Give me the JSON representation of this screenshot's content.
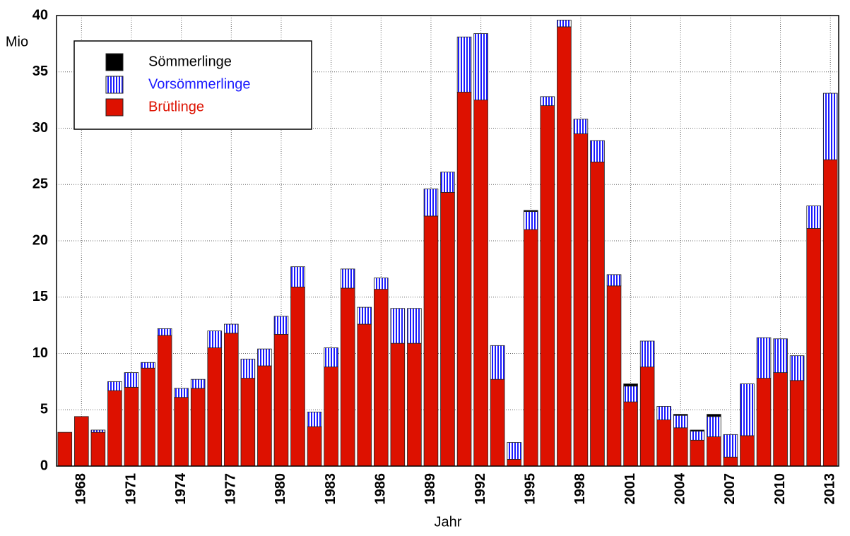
{
  "chart_data": {
    "type": "stacked-bar",
    "y_label": "Mio",
    "x_label": "Jahr",
    "categories": [
      null,
      "1968",
      null,
      null,
      "1971",
      null,
      null,
      "1974",
      null,
      null,
      "1977",
      null,
      null,
      "1980",
      null,
      null,
      "1983",
      null,
      null,
      "1986",
      null,
      null,
      "1989",
      null,
      null,
      "1992",
      null,
      null,
      "1995",
      null,
      null,
      "1998",
      null,
      null,
      "2001",
      null,
      null,
      "2004",
      null,
      null,
      "2007",
      null,
      null,
      "2010",
      null,
      null,
      "2013"
    ],
    "series": [
      {
        "name": "Sömmerlinge",
        "color": "#000000",
        "values": [
          0,
          0,
          0,
          0,
          0,
          0,
          0,
          0,
          0,
          0,
          0,
          0,
          0,
          0,
          0,
          0,
          0,
          0,
          0,
          0,
          0,
          0,
          0,
          0,
          0,
          0,
          0,
          0,
          0.1,
          0,
          0,
          0,
          0,
          0,
          0.2,
          0,
          0,
          0.1,
          0.1,
          0.2,
          0,
          0,
          0,
          0,
          0,
          0,
          0
        ]
      },
      {
        "name": "Vorsömmerlinge",
        "color": "#1a1aff",
        "values": [
          0,
          0,
          0.2,
          0.8,
          1.3,
          0.5,
          0.6,
          0.8,
          0.8,
          1.5,
          0.8,
          1.7,
          1.5,
          1.6,
          1.8,
          1.3,
          1.7,
          1.7,
          1.5,
          1.0,
          3.1,
          3.1,
          2.4,
          1.8,
          4.9,
          5.9,
          3.0,
          1.5,
          1.6,
          0.8,
          0.6,
          1.3,
          1.9,
          1.0,
          1.4,
          2.3,
          1.2,
          1.1,
          0.8,
          1.8,
          2.0,
          4.6,
          3.6,
          3.0,
          2.2,
          2.0,
          5.9
        ]
      },
      {
        "name": "Brütlinge",
        "color": "#dd1100",
        "values": [
          3.0,
          4.4,
          3.0,
          6.7,
          7.0,
          8.7,
          11.6,
          6.1,
          6.9,
          10.5,
          11.8,
          7.8,
          8.9,
          11.7,
          15.9,
          3.5,
          8.8,
          15.8,
          12.6,
          15.7,
          10.9,
          10.9,
          22.2,
          24.3,
          33.2,
          32.5,
          7.7,
          0.6,
          21.0,
          32.0,
          39.0,
          29.5,
          27.0,
          16.0,
          5.7,
          8.8,
          4.1,
          3.4,
          2.3,
          2.6,
          0.8,
          2.7,
          7.8,
          8.3,
          7.6,
          21.1,
          27.2
        ]
      }
    ],
    "ylim": [
      0,
      40
    ],
    "yticks": [
      0,
      5,
      10,
      15,
      20,
      25,
      30,
      35,
      40
    ],
    "grid": true,
    "legend": "top-left"
  }
}
